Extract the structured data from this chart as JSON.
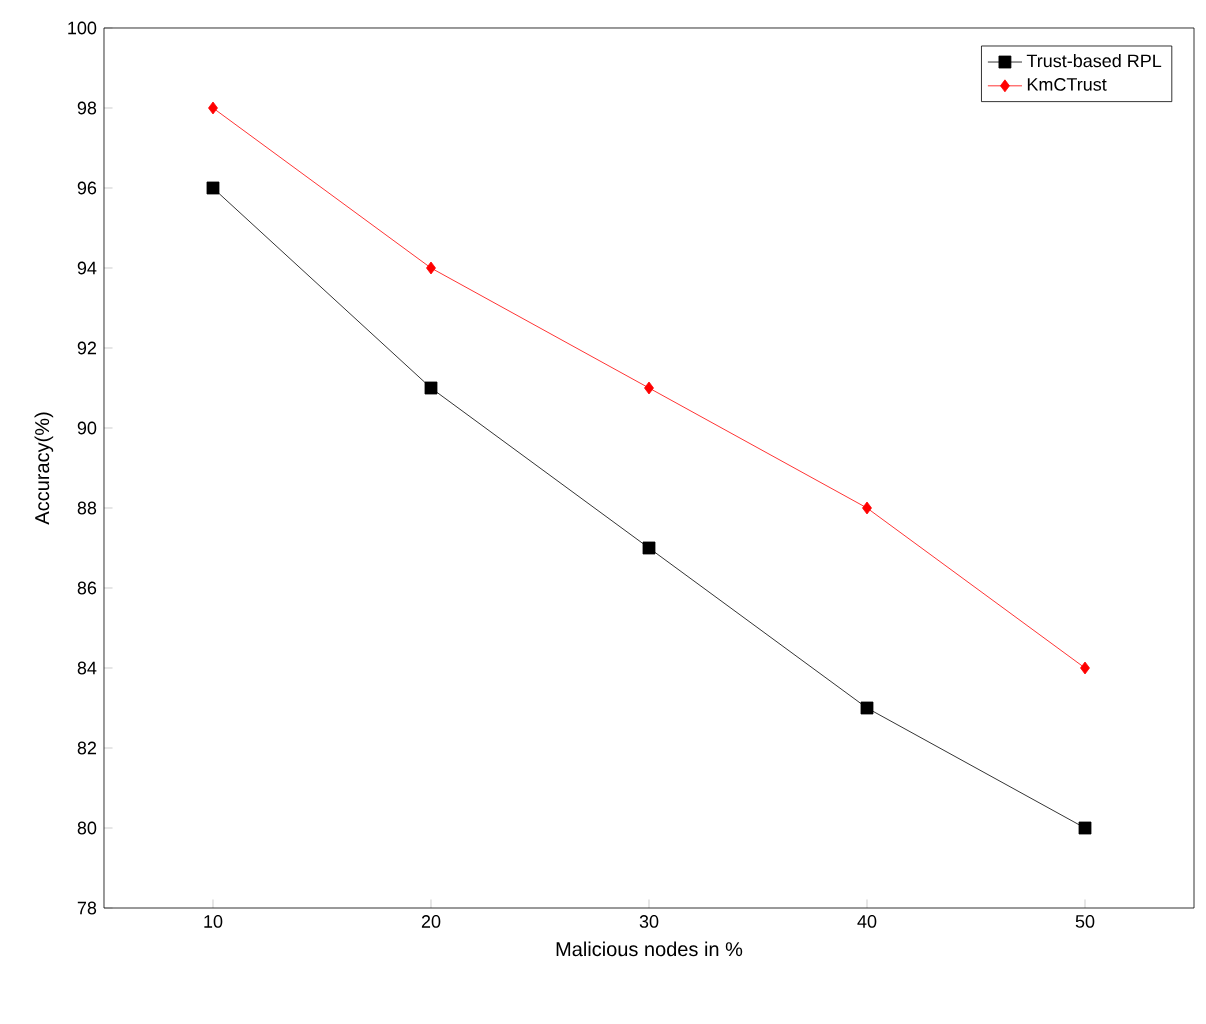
{
  "chart_data": {
    "type": "line",
    "xlabel": "Malicious nodes in %",
    "ylabel": "Accuracy(%)",
    "x": [
      10,
      20,
      30,
      40,
      50
    ],
    "series": [
      {
        "name": "Trust-based RPL",
        "color": "#000000",
        "marker": "square",
        "values": [
          96,
          91,
          87,
          83,
          80
        ]
      },
      {
        "name": "KmCTrust",
        "color": "#ff0000",
        "marker": "diamond",
        "values": [
          98,
          94,
          91,
          88,
          84
        ]
      }
    ],
    "xlim": [
      5,
      55
    ],
    "ylim": [
      78,
      100
    ],
    "xticks": [
      10,
      20,
      30,
      40,
      50
    ],
    "yticks": [
      78,
      80,
      82,
      84,
      86,
      88,
      90,
      92,
      94,
      96,
      98,
      100
    ],
    "grid": false,
    "legend": "top right",
    "line_style": "solid"
  }
}
